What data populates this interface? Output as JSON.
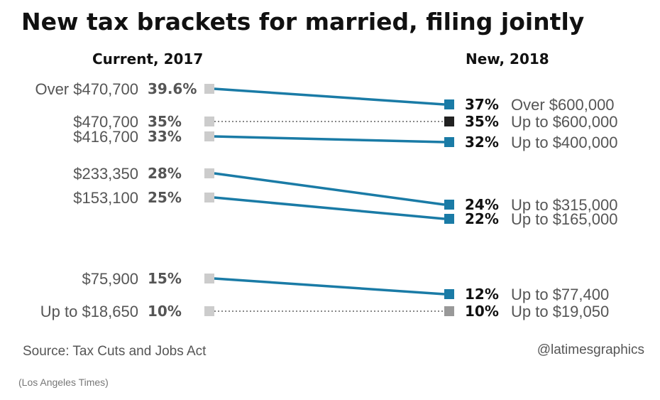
{
  "title": "New tax brackets for married, filing jointly",
  "columns": {
    "left": "Current, 2017",
    "right": "New, 2018"
  },
  "source": "Source: Tax Cuts and Jobs Act",
  "credit": "@latimesgraphics",
  "footer": "(Los Angeles Times)",
  "colors": {
    "changed": "#1a7ba6",
    "unchanged_dark": "#222222",
    "unchanged_gray": "#999999",
    "current_marker": "#cccccc"
  },
  "chart_data": {
    "type": "slope",
    "current_2017": [
      {
        "threshold": "Over $470,700",
        "rate": "39.6%",
        "rate_value": 39.6
      },
      {
        "threshold": "$470,700",
        "rate": "35%",
        "rate_value": 35
      },
      {
        "threshold": "$416,700",
        "rate": "33%",
        "rate_value": 33
      },
      {
        "threshold": "$233,350",
        "rate": "28%",
        "rate_value": 28
      },
      {
        "threshold": "$153,100",
        "rate": "25%",
        "rate_value": 25
      },
      {
        "threshold": "$75,900",
        "rate": "15%",
        "rate_value": 15
      },
      {
        "threshold": "Up to $18,650",
        "rate": "10%",
        "rate_value": 10
      }
    ],
    "new_2018": [
      {
        "rate": "37%",
        "threshold": "Over $600,000",
        "rate_value": 37
      },
      {
        "rate": "35%",
        "threshold": "Up to $600,000",
        "rate_value": 35
      },
      {
        "rate": "32%",
        "threshold": "Up to $400,000",
        "rate_value": 32
      },
      {
        "rate": "24%",
        "threshold": "Up to $315,000",
        "rate_value": 24
      },
      {
        "rate": "22%",
        "threshold": "Up to $165,000",
        "rate_value": 22
      },
      {
        "rate": "12%",
        "threshold": "Up to $77,400",
        "rate_value": 12
      },
      {
        "rate": "10%",
        "threshold": "Up to $19,050",
        "rate_value": 10
      }
    ],
    "connections": [
      {
        "from": "39.6%",
        "to": "37%",
        "style": "solid"
      },
      {
        "from": "35%",
        "to": "35%",
        "style": "dotted"
      },
      {
        "from": "33%",
        "to": "32%",
        "style": "solid"
      },
      {
        "from": "28%",
        "to": "24%",
        "style": "solid"
      },
      {
        "from": "25%",
        "to": "22%",
        "style": "solid"
      },
      {
        "from": "15%",
        "to": "12%",
        "style": "solid"
      },
      {
        "from": "10%",
        "to": "10%",
        "style": "dotted"
      }
    ]
  }
}
